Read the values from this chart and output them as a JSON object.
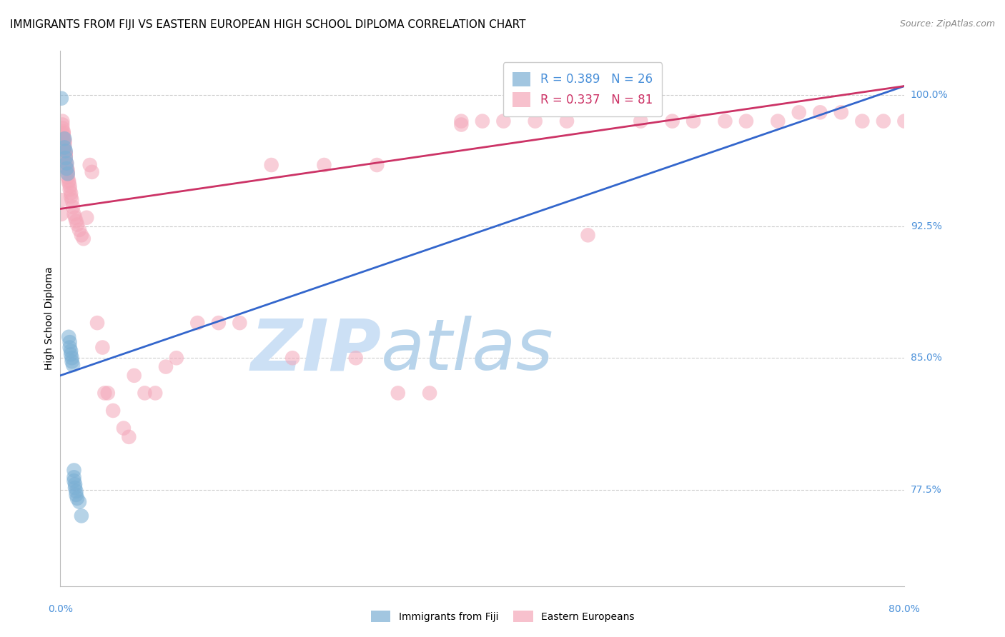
{
  "title": "IMMIGRANTS FROM FIJI VS EASTERN EUROPEAN HIGH SCHOOL DIPLOMA CORRELATION CHART",
  "source": "Source: ZipAtlas.com",
  "ylabel": "High School Diploma",
  "legend_fiji_label": "R = 0.389   N = 26",
  "legend_eastern_label": "R = 0.337   N = 81",
  "fiji_scatter_color": "#7bafd4",
  "eastern_scatter_color": "#f4a7b9",
  "fiji_line_color": "#3366cc",
  "eastern_line_color": "#cc3366",
  "watermark_zip": "ZIP",
  "watermark_atlas": "atlas",
  "watermark_zip_color": "#d6e8f7",
  "watermark_atlas_color": "#c8dff0",
  "background_color": "#ffffff",
  "grid_color": "#cccccc",
  "title_fontsize": 11,
  "axis_label_fontsize": 10,
  "tick_fontsize": 10,
  "source_fontsize": 9,
  "legend_fontsize": 12,
  "right_tick_color": "#4a90d9",
  "bottom_tick_color": "#4a90d9",
  "fiji_line_x": [
    0.0,
    0.8
  ],
  "fiji_line_y": [
    0.84,
    1.005
  ],
  "eastern_line_x": [
    0.0,
    0.8
  ],
  "eastern_line_y": [
    0.935,
    1.005
  ],
  "xlim": [
    0.0,
    0.8
  ],
  "ylim": [
    0.72,
    1.025
  ],
  "yticks_right": [
    1.0,
    0.925,
    0.85,
    0.775
  ],
  "ytick_labels_right": [
    "100.0%",
    "92.5%",
    "85.0%",
    "77.5%"
  ],
  "xticks_bottom": [
    0.0,
    0.8
  ],
  "xtick_labels_bottom": [
    "0.0%",
    "80.0%"
  ],
  "fiji_points": [
    [
      0.001,
      0.998
    ],
    [
      0.004,
      0.975
    ],
    [
      0.004,
      0.97
    ],
    [
      0.005,
      0.968
    ],
    [
      0.005,
      0.964
    ],
    [
      0.006,
      0.961
    ],
    [
      0.006,
      0.958
    ],
    [
      0.007,
      0.955
    ],
    [
      0.008,
      0.862
    ],
    [
      0.009,
      0.859
    ],
    [
      0.009,
      0.856
    ],
    [
      0.01,
      0.854
    ],
    [
      0.01,
      0.852
    ],
    [
      0.011,
      0.85
    ],
    [
      0.011,
      0.848
    ],
    [
      0.012,
      0.846
    ],
    [
      0.013,
      0.786
    ],
    [
      0.013,
      0.782
    ],
    [
      0.013,
      0.78
    ],
    [
      0.014,
      0.778
    ],
    [
      0.014,
      0.776
    ],
    [
      0.015,
      0.774
    ],
    [
      0.015,
      0.772
    ],
    [
      0.016,
      0.77
    ],
    [
      0.018,
      0.768
    ],
    [
      0.02,
      0.76
    ]
  ],
  "eastern_points": [
    [
      0.001,
      0.94
    ],
    [
      0.001,
      0.932
    ],
    [
      0.002,
      0.985
    ],
    [
      0.002,
      0.983
    ],
    [
      0.002,
      0.981
    ],
    [
      0.003,
      0.979
    ],
    [
      0.003,
      0.978
    ],
    [
      0.003,
      0.977
    ],
    [
      0.003,
      0.975
    ],
    [
      0.004,
      0.974
    ],
    [
      0.004,
      0.973
    ],
    [
      0.004,
      0.972
    ],
    [
      0.004,
      0.97
    ],
    [
      0.004,
      0.968
    ],
    [
      0.005,
      0.967
    ],
    [
      0.005,
      0.966
    ],
    [
      0.005,
      0.965
    ],
    [
      0.005,
      0.963
    ],
    [
      0.006,
      0.961
    ],
    [
      0.006,
      0.959
    ],
    [
      0.006,
      0.958
    ],
    [
      0.007,
      0.957
    ],
    [
      0.007,
      0.955
    ],
    [
      0.007,
      0.953
    ],
    [
      0.008,
      0.951
    ],
    [
      0.008,
      0.95
    ],
    [
      0.009,
      0.948
    ],
    [
      0.009,
      0.946
    ],
    [
      0.01,
      0.944
    ],
    [
      0.01,
      0.942
    ],
    [
      0.011,
      0.94
    ],
    [
      0.012,
      0.936
    ],
    [
      0.013,
      0.932
    ],
    [
      0.014,
      0.93
    ],
    [
      0.015,
      0.928
    ],
    [
      0.016,
      0.926
    ],
    [
      0.018,
      0.923
    ],
    [
      0.02,
      0.92
    ],
    [
      0.022,
      0.918
    ],
    [
      0.025,
      0.93
    ],
    [
      0.028,
      0.96
    ],
    [
      0.03,
      0.956
    ],
    [
      0.035,
      0.87
    ],
    [
      0.04,
      0.856
    ],
    [
      0.042,
      0.83
    ],
    [
      0.045,
      0.83
    ],
    [
      0.05,
      0.82
    ],
    [
      0.06,
      0.81
    ],
    [
      0.065,
      0.805
    ],
    [
      0.07,
      0.84
    ],
    [
      0.08,
      0.83
    ],
    [
      0.09,
      0.83
    ],
    [
      0.1,
      0.845
    ],
    [
      0.11,
      0.85
    ],
    [
      0.13,
      0.87
    ],
    [
      0.15,
      0.87
    ],
    [
      0.17,
      0.87
    ],
    [
      0.2,
      0.96
    ],
    [
      0.22,
      0.85
    ],
    [
      0.25,
      0.96
    ],
    [
      0.28,
      0.85
    ],
    [
      0.3,
      0.96
    ],
    [
      0.32,
      0.83
    ],
    [
      0.35,
      0.83
    ],
    [
      0.38,
      0.985
    ],
    [
      0.38,
      0.983
    ],
    [
      0.4,
      0.985
    ],
    [
      0.42,
      0.985
    ],
    [
      0.45,
      0.985
    ],
    [
      0.48,
      0.985
    ],
    [
      0.5,
      0.92
    ],
    [
      0.55,
      0.985
    ],
    [
      0.58,
      0.985
    ],
    [
      0.6,
      0.985
    ],
    [
      0.63,
      0.985
    ],
    [
      0.65,
      0.985
    ],
    [
      0.68,
      0.985
    ],
    [
      0.7,
      0.99
    ],
    [
      0.72,
      0.99
    ],
    [
      0.74,
      0.99
    ],
    [
      0.76,
      0.985
    ],
    [
      0.78,
      0.985
    ],
    [
      0.8,
      0.985
    ]
  ]
}
